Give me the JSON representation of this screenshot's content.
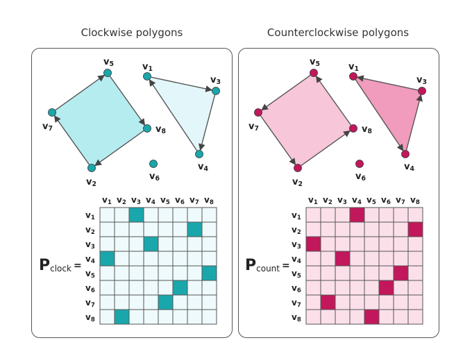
{
  "panels": [
    {
      "title": "Clockwise polygons",
      "p_label": "P",
      "p_sub": "clock",
      "colors": {
        "poly_fill": "#b5ecf0",
        "tri_fill": "#e3f7fa",
        "node": "#1aa7ac",
        "cell_fill": "#eefafb",
        "cell_on": "#1aa7ac"
      },
      "ones": [
        [
          1,
          3
        ],
        [
          2,
          7
        ],
        [
          3,
          4
        ],
        [
          4,
          1
        ],
        [
          5,
          8
        ],
        [
          6,
          6
        ],
        [
          7,
          5
        ],
        [
          8,
          2
        ]
      ]
    },
    {
      "title": "Counterclockwise polygons",
      "p_label": "P",
      "p_sub": "count",
      "colors": {
        "poly_fill": "#f7c6d9",
        "tri_fill": "#f19bbd",
        "node": "#c2185b",
        "cell_fill": "#fbe0ea",
        "cell_on": "#c2185b"
      },
      "ones": [
        [
          1,
          4
        ],
        [
          2,
          8
        ],
        [
          3,
          1
        ],
        [
          4,
          3
        ],
        [
          5,
          7
        ],
        [
          6,
          6
        ],
        [
          7,
          2
        ],
        [
          8,
          5
        ]
      ]
    }
  ],
  "vertex_labels": [
    "v1",
    "v2",
    "v3",
    "v4",
    "v5",
    "v6",
    "v7",
    "v8"
  ],
  "equals": "="
}
